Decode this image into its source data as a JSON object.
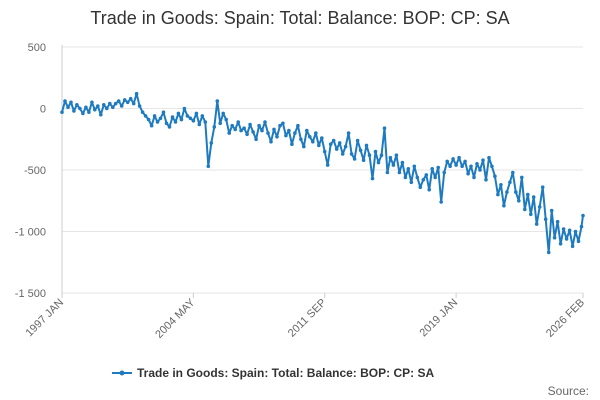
{
  "chart_data": {
    "type": "line",
    "title": "Trade in Goods: Spain: Total: Balance: BOP: CP: SA",
    "xlabel": "",
    "ylabel": "",
    "ylim": [
      -1500,
      500
    ],
    "yticks": [
      500,
      0,
      -500,
      -1000,
      -1500
    ],
    "ytick_labels": [
      "500",
      "0",
      "-500",
      "-1 000",
      "-1 500"
    ],
    "xlim": [
      "1997-01",
      "2026-02"
    ],
    "xticks": [
      {
        "date": "1997-01",
        "label": "1997 JAN"
      },
      {
        "date": "2004-05",
        "label": "2004 MAY"
      },
      {
        "date": "2011-09",
        "label": "2011 SEP"
      },
      {
        "date": "2019-01",
        "label": "2019 JAN"
      },
      {
        "date": "2026-02",
        "label": "2026 FEB"
      }
    ],
    "grid": "horizontal",
    "legend_position": "bottom",
    "source_label": "Source:",
    "color": "#1f7bbf",
    "series": [
      {
        "name": "Trade in Goods: Spain: Total: Balance: BOP: CP: SA",
        "points": [
          [
            "1997-01",
            -30
          ],
          [
            "1997-03",
            60
          ],
          [
            "1997-05",
            10
          ],
          [
            "1997-07",
            50
          ],
          [
            "1997-09",
            -20
          ],
          [
            "1997-11",
            30
          ],
          [
            "1998-01",
            0
          ],
          [
            "1998-03",
            -40
          ],
          [
            "1998-05",
            10
          ],
          [
            "1998-07",
            -30
          ],
          [
            "1998-09",
            50
          ],
          [
            "1998-11",
            -10
          ],
          [
            "1999-01",
            20
          ],
          [
            "1999-03",
            -50
          ],
          [
            "1999-05",
            30
          ],
          [
            "1999-07",
            0
          ],
          [
            "1999-09",
            40
          ],
          [
            "1999-11",
            10
          ],
          [
            "2000-01",
            40
          ],
          [
            "2000-03",
            60
          ],
          [
            "2000-05",
            20
          ],
          [
            "2000-07",
            70
          ],
          [
            "2000-09",
            50
          ],
          [
            "2000-11",
            80
          ],
          [
            "2001-01",
            40
          ],
          [
            "2001-03",
            120
          ],
          [
            "2001-05",
            20
          ],
          [
            "2001-07",
            -30
          ],
          [
            "2001-09",
            -60
          ],
          [
            "2001-11",
            -90
          ],
          [
            "2002-01",
            -140
          ],
          [
            "2002-03",
            -60
          ],
          [
            "2002-05",
            -110
          ],
          [
            "2002-07",
            -80
          ],
          [
            "2002-09",
            -30
          ],
          [
            "2002-11",
            -120
          ],
          [
            "2003-01",
            -150
          ],
          [
            "2003-03",
            -70
          ],
          [
            "2003-05",
            -110
          ],
          [
            "2003-07",
            -40
          ],
          [
            "2003-09",
            -90
          ],
          [
            "2003-11",
            0
          ],
          [
            "2004-01",
            -60
          ],
          [
            "2004-03",
            -80
          ],
          [
            "2004-05",
            -100
          ],
          [
            "2004-07",
            -40
          ],
          [
            "2004-09",
            -130
          ],
          [
            "2004-11",
            -60
          ],
          [
            "2005-01",
            -110
          ],
          [
            "2005-03",
            -470
          ],
          [
            "2005-05",
            -280
          ],
          [
            "2005-07",
            -150
          ],
          [
            "2005-09",
            60
          ],
          [
            "2005-11",
            -120
          ],
          [
            "2006-01",
            -40
          ],
          [
            "2006-03",
            -90
          ],
          [
            "2006-05",
            -200
          ],
          [
            "2006-07",
            -140
          ],
          [
            "2006-09",
            -170
          ],
          [
            "2006-11",
            -110
          ],
          [
            "2007-01",
            -180
          ],
          [
            "2007-03",
            -160
          ],
          [
            "2007-05",
            -210
          ],
          [
            "2007-07",
            -130
          ],
          [
            "2007-09",
            -190
          ],
          [
            "2007-11",
            -250
          ],
          [
            "2008-01",
            -140
          ],
          [
            "2008-03",
            -180
          ],
          [
            "2008-05",
            -110
          ],
          [
            "2008-07",
            -200
          ],
          [
            "2008-09",
            -270
          ],
          [
            "2008-11",
            -170
          ],
          [
            "2009-01",
            -230
          ],
          [
            "2009-03",
            -140
          ],
          [
            "2009-05",
            -120
          ],
          [
            "2009-07",
            -220
          ],
          [
            "2009-09",
            -180
          ],
          [
            "2009-11",
            -290
          ],
          [
            "2010-01",
            -200
          ],
          [
            "2010-03",
            -140
          ],
          [
            "2010-05",
            -250
          ],
          [
            "2010-07",
            -310
          ],
          [
            "2010-09",
            -180
          ],
          [
            "2010-11",
            -230
          ],
          [
            "2011-01",
            -270
          ],
          [
            "2011-03",
            -200
          ],
          [
            "2011-05",
            -300
          ],
          [
            "2011-07",
            -240
          ],
          [
            "2011-09",
            -350
          ],
          [
            "2011-11",
            -460
          ],
          [
            "2012-01",
            -290
          ],
          [
            "2012-03",
            -260
          ],
          [
            "2012-05",
            -330
          ],
          [
            "2012-07",
            -280
          ],
          [
            "2012-09",
            -370
          ],
          [
            "2012-11",
            -310
          ],
          [
            "2013-01",
            -200
          ],
          [
            "2013-03",
            -370
          ],
          [
            "2013-05",
            -410
          ],
          [
            "2013-07",
            -260
          ],
          [
            "2013-09",
            -340
          ],
          [
            "2013-11",
            -420
          ],
          [
            "2014-01",
            -300
          ],
          [
            "2014-03",
            -380
          ],
          [
            "2014-05",
            -570
          ],
          [
            "2014-07",
            -350
          ],
          [
            "2014-09",
            -440
          ],
          [
            "2014-11",
            -380
          ],
          [
            "2015-01",
            -160
          ],
          [
            "2015-03",
            -520
          ],
          [
            "2015-05",
            -400
          ],
          [
            "2015-07",
            -460
          ],
          [
            "2015-09",
            -380
          ],
          [
            "2015-11",
            -520
          ],
          [
            "2016-01",
            -440
          ],
          [
            "2016-03",
            -560
          ],
          [
            "2016-05",
            -490
          ],
          [
            "2016-07",
            -600
          ],
          [
            "2016-09",
            -470
          ],
          [
            "2016-11",
            -560
          ],
          [
            "2017-01",
            -640
          ],
          [
            "2017-03",
            -580
          ],
          [
            "2017-05",
            -540
          ],
          [
            "2017-07",
            -660
          ],
          [
            "2017-09",
            -490
          ],
          [
            "2017-11",
            -560
          ],
          [
            "2018-01",
            -480
          ],
          [
            "2018-03",
            -760
          ],
          [
            "2018-05",
            -520
          ],
          [
            "2018-07",
            -430
          ],
          [
            "2018-09",
            -470
          ],
          [
            "2018-11",
            -410
          ],
          [
            "2019-01",
            -460
          ],
          [
            "2019-03",
            -400
          ],
          [
            "2019-05",
            -470
          ],
          [
            "2019-07",
            -430
          ],
          [
            "2019-09",
            -530
          ],
          [
            "2019-11",
            -470
          ],
          [
            "2020-01",
            -560
          ],
          [
            "2020-03",
            -450
          ],
          [
            "2020-05",
            -500
          ],
          [
            "2020-07",
            -420
          ],
          [
            "2020-09",
            -580
          ],
          [
            "2020-11",
            -400
          ],
          [
            "2021-01",
            -470
          ],
          [
            "2021-03",
            -550
          ],
          [
            "2021-05",
            -700
          ],
          [
            "2021-07",
            -620
          ],
          [
            "2021-09",
            -790
          ],
          [
            "2021-11",
            -680
          ],
          [
            "2022-01",
            -600
          ],
          [
            "2022-03",
            -520
          ],
          [
            "2022-05",
            -680
          ],
          [
            "2022-07",
            -750
          ],
          [
            "2022-09",
            -560
          ],
          [
            "2022-11",
            -820
          ],
          [
            "2023-01",
            -700
          ],
          [
            "2023-03",
            -860
          ],
          [
            "2023-05",
            -720
          ],
          [
            "2023-07",
            -940
          ],
          [
            "2023-09",
            -800
          ],
          [
            "2023-11",
            -640
          ],
          [
            "2024-01",
            -900
          ],
          [
            "2024-03",
            -1170
          ],
          [
            "2024-05",
            -830
          ],
          [
            "2024-07",
            -1050
          ],
          [
            "2024-09",
            -920
          ],
          [
            "2024-11",
            -1100
          ],
          [
            "2025-01",
            -980
          ],
          [
            "2025-03",
            -1060
          ],
          [
            "2025-05",
            -990
          ],
          [
            "2025-07",
            -1120
          ],
          [
            "2025-09",
            -1000
          ],
          [
            "2025-11",
            -1080
          ],
          [
            "2026-01",
            -960
          ],
          [
            "2026-02",
            -870
          ]
        ]
      }
    ]
  }
}
